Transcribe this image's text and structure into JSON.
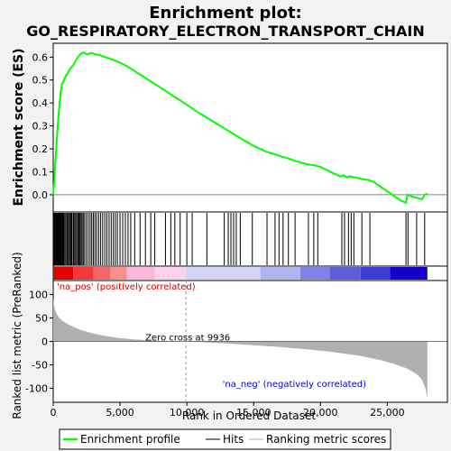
{
  "chart_data": {
    "type": "line",
    "title": "Enrichment plot:",
    "subtitle": "GO_RESPIRATORY_ELECTRON_TRANSPORT_CHAIN",
    "xlabel": "Rank in Ordered Dataset",
    "es_panel": {
      "ylabel": "Enrichment score (ES)",
      "yticks": [
        "0.0",
        "0.1",
        "0.2",
        "0.3",
        "0.4",
        "0.5",
        "0.6"
      ],
      "ylim": [
        -0.075,
        0.66
      ],
      "series": [
        {
          "name": "Enrichment profile",
          "color": "#00ff00",
          "x": [
            0,
            80,
            150,
            250,
            350,
            450,
            550,
            650,
            800,
            950,
            1100,
            1200,
            1350,
            1500,
            1650,
            1750,
            1850,
            2000,
            2100,
            2250,
            2400,
            2550,
            2700,
            2850,
            3000,
            3150,
            3300,
            3500,
            3700,
            3900,
            4100,
            4300,
            4500,
            4700,
            4900,
            5200,
            5600,
            6000,
            6500,
            7000,
            8000,
            9000,
            10000,
            11000,
            12000,
            13000,
            14000,
            15000,
            16000,
            16500,
            17000,
            17500,
            18000,
            18500,
            19000,
            19300,
            19600,
            20000,
            20500,
            21000,
            21500,
            21700,
            22000,
            22200,
            22400,
            22700,
            23000,
            23300,
            23600,
            24000,
            24500,
            25000,
            25500,
            26000,
            26400,
            26500,
            26700,
            27000,
            27300,
            27600,
            27800,
            28000
          ],
          "values": [
            0.0,
            0.06,
            0.13,
            0.22,
            0.31,
            0.38,
            0.44,
            0.48,
            0.5,
            0.52,
            0.53,
            0.545,
            0.555,
            0.565,
            0.58,
            0.59,
            0.6,
            0.61,
            0.615,
            0.62,
            0.615,
            0.612,
            0.615,
            0.618,
            0.615,
            0.612,
            0.61,
            0.608,
            0.603,
            0.6,
            0.596,
            0.592,
            0.588,
            0.583,
            0.578,
            0.57,
            0.558,
            0.543,
            0.524,
            0.505,
            0.468,
            0.43,
            0.392,
            0.354,
            0.318,
            0.282,
            0.247,
            0.213,
            0.186,
            0.178,
            0.168,
            0.16,
            0.15,
            0.141,
            0.133,
            0.13,
            0.128,
            0.121,
            0.107,
            0.093,
            0.08,
            0.085,
            0.075,
            0.081,
            0.078,
            0.074,
            0.07,
            0.067,
            0.064,
            0.055,
            0.035,
            0.015,
            -0.005,
            -0.025,
            -0.035,
            0.0,
            -0.005,
            -0.01,
            -0.015,
            -0.02,
            0.0,
            0.005
          ]
        }
      ]
    },
    "hits_panel": {
      "name": "Hits",
      "positions": [
        40,
        90,
        130,
        170,
        210,
        250,
        290,
        330,
        370,
        410,
        450,
        490,
        530,
        570,
        620,
        680,
        740,
        800,
        880,
        960,
        1050,
        1130,
        1200,
        1280,
        1350,
        1420,
        1520,
        1600,
        1680,
        1760,
        1850,
        1930,
        2000,
        2080,
        2160,
        2250,
        2350,
        2480,
        2620,
        2760,
        2880,
        3000,
        3120,
        3250,
        3400,
        3550,
        3700,
        3860,
        4020,
        4180,
        4340,
        4500,
        4650,
        4800,
        5000,
        5200,
        5400,
        5600,
        5800,
        6100,
        6500,
        6900,
        7300,
        7600,
        8400,
        8800,
        9100,
        9500,
        10000,
        10400,
        11500,
        12800,
        13100,
        13300,
        13500,
        13700,
        14000,
        14900,
        16000,
        16600,
        16900,
        17200,
        17600,
        18100,
        19100,
        19500,
        19800,
        21600,
        21800,
        22100,
        22300,
        22500,
        23100,
        23700,
        26400,
        26550,
        27200,
        27800
      ]
    },
    "metric_panel": {
      "name": "Ranking metric scores",
      "ylabel": "Ranked list metric (PreRanked)",
      "yticks": [
        "100",
        "50",
        "0",
        "-50",
        "-100"
      ],
      "ylim": [
        -130,
        130
      ],
      "x": [
        0,
        50,
        100,
        200,
        400,
        700,
        1000,
        1500,
        2000,
        3000,
        4000,
        5000,
        6000,
        7000,
        8000,
        9000,
        9936,
        11000,
        13000,
        15000,
        17000,
        19000,
        21000,
        23000,
        24500,
        25500,
        26500,
        27200,
        27600,
        27850,
        28000
      ],
      "values": [
        92,
        80,
        72,
        62,
        52,
        44,
        38,
        31,
        25,
        17,
        11,
        7,
        4.5,
        2.8,
        1.6,
        0.7,
        0,
        -1.5,
        -4.5,
        -8,
        -12,
        -17,
        -23,
        -31,
        -40,
        -48,
        -58,
        -70,
        -82,
        -100,
        -122
      ],
      "zero_cross_label": "Zero cross at 9936",
      "zero_cross": 9936
    },
    "annotations": {
      "pos_label": "'na_pos' (positively correlated)",
      "neg_label": "'na_neg' (negatively correlated)"
    },
    "xaxis": {
      "range": [
        0,
        29500
      ],
      "ticks": [
        0,
        5000,
        10000,
        15000,
        20000,
        25000
      ],
      "ticklabels": [
        "0",
        "5,000",
        "10,000",
        "15,000",
        "20,000",
        "25,000"
      ]
    },
    "legend": {
      "items": [
        "Enrichment profile",
        "Hits",
        "Ranking metric scores"
      ],
      "placement": "bottom"
    },
    "colors": {
      "es_line": "#00ff00",
      "hit": "#000000",
      "metric_fill": "#b0b0b0",
      "pos_text": "#cc0000",
      "neg_text": "#0000cc",
      "pos_strong": "#e00000",
      "neg_strong": "#1400c8"
    }
  }
}
